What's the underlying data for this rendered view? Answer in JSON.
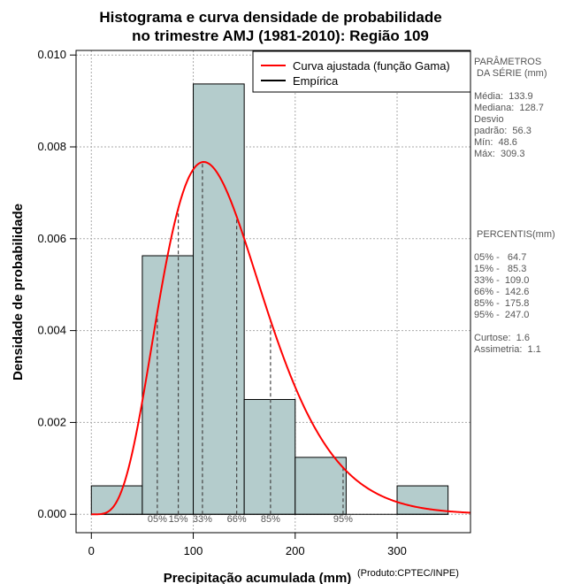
{
  "chart_data": {
    "type": "histogram",
    "title_line1": "Histograma e curva densidade de probabilidade",
    "title_line2": "no trimestre AMJ (1981-2010): Região 109",
    "xlabel": "Precipitação acumulada (mm)",
    "ylabel": "Densidade de probabilidade",
    "credit": "(Produto:CPTEC/INPE)",
    "xlim": [
      -15,
      372
    ],
    "ylim": [
      -0.0004,
      0.0101
    ],
    "x_ticks": [
      0,
      100,
      200,
      300
    ],
    "x_tick_labels": [
      "0",
      "100",
      "200",
      "300"
    ],
    "y_ticks": [
      0,
      0.002,
      0.004,
      0.006,
      0.008,
      0.01
    ],
    "y_tick_labels": [
      "0.000",
      "0.002",
      "0.004",
      "0.006",
      "0.008",
      "0.010"
    ],
    "grid": true,
    "bins": [
      {
        "from": 0,
        "to": 50,
        "density": 0.00062
      },
      {
        "from": 50,
        "to": 100,
        "density": 0.00563
      },
      {
        "from": 100,
        "to": 150,
        "density": 0.00937
      },
      {
        "from": 150,
        "to": 200,
        "density": 0.0025
      },
      {
        "from": 200,
        "to": 250,
        "density": 0.00124
      },
      {
        "from": 250,
        "to": 300,
        "density": 0
      },
      {
        "from": 300,
        "to": 350,
        "density": 0.00062
      }
    ],
    "bar_color": "#b4cccc",
    "curve": {
      "name": "Curva ajustada (função Gama)",
      "color": "#ff0000",
      "mean": 133.9,
      "sd": 56.3
    },
    "legend": [
      {
        "label": "Curva ajustada (função Gama)",
        "color": "#ff0000"
      },
      {
        "label": "Empírica",
        "color": "#000000"
      }
    ],
    "legend_position": "top-right",
    "percentile_lines": [
      {
        "label": "05%",
        "value": 64.7
      },
      {
        "label": "15%",
        "value": 85.3
      },
      {
        "label": "33%",
        "value": 109.0
      },
      {
        "label": "66%",
        "value": 142.6
      },
      {
        "label": "85%",
        "value": 175.8
      },
      {
        "label": "95%",
        "value": 247.0
      }
    ]
  },
  "side_panel": {
    "params_header_1": "PARÂMETROS",
    "params_header_2": " DA SÉRIE (mm)",
    "params": [
      "Média:  133.9",
      "Mediana:  128.7",
      "Desvio",
      "padrão:  56.3",
      "Mín:  48.6",
      "Máx:  309.3"
    ],
    "percentis_header": " PERCENTIS(mm)",
    "percentis": [
      "05% -   64.7",
      "15% -   85.3",
      "33% -  109.0",
      "66% -  142.6",
      "85% -  175.8",
      "95% -  247.0"
    ],
    "stats": [
      "Curtose:  1.6",
      "Assimetria:  1.1"
    ]
  }
}
